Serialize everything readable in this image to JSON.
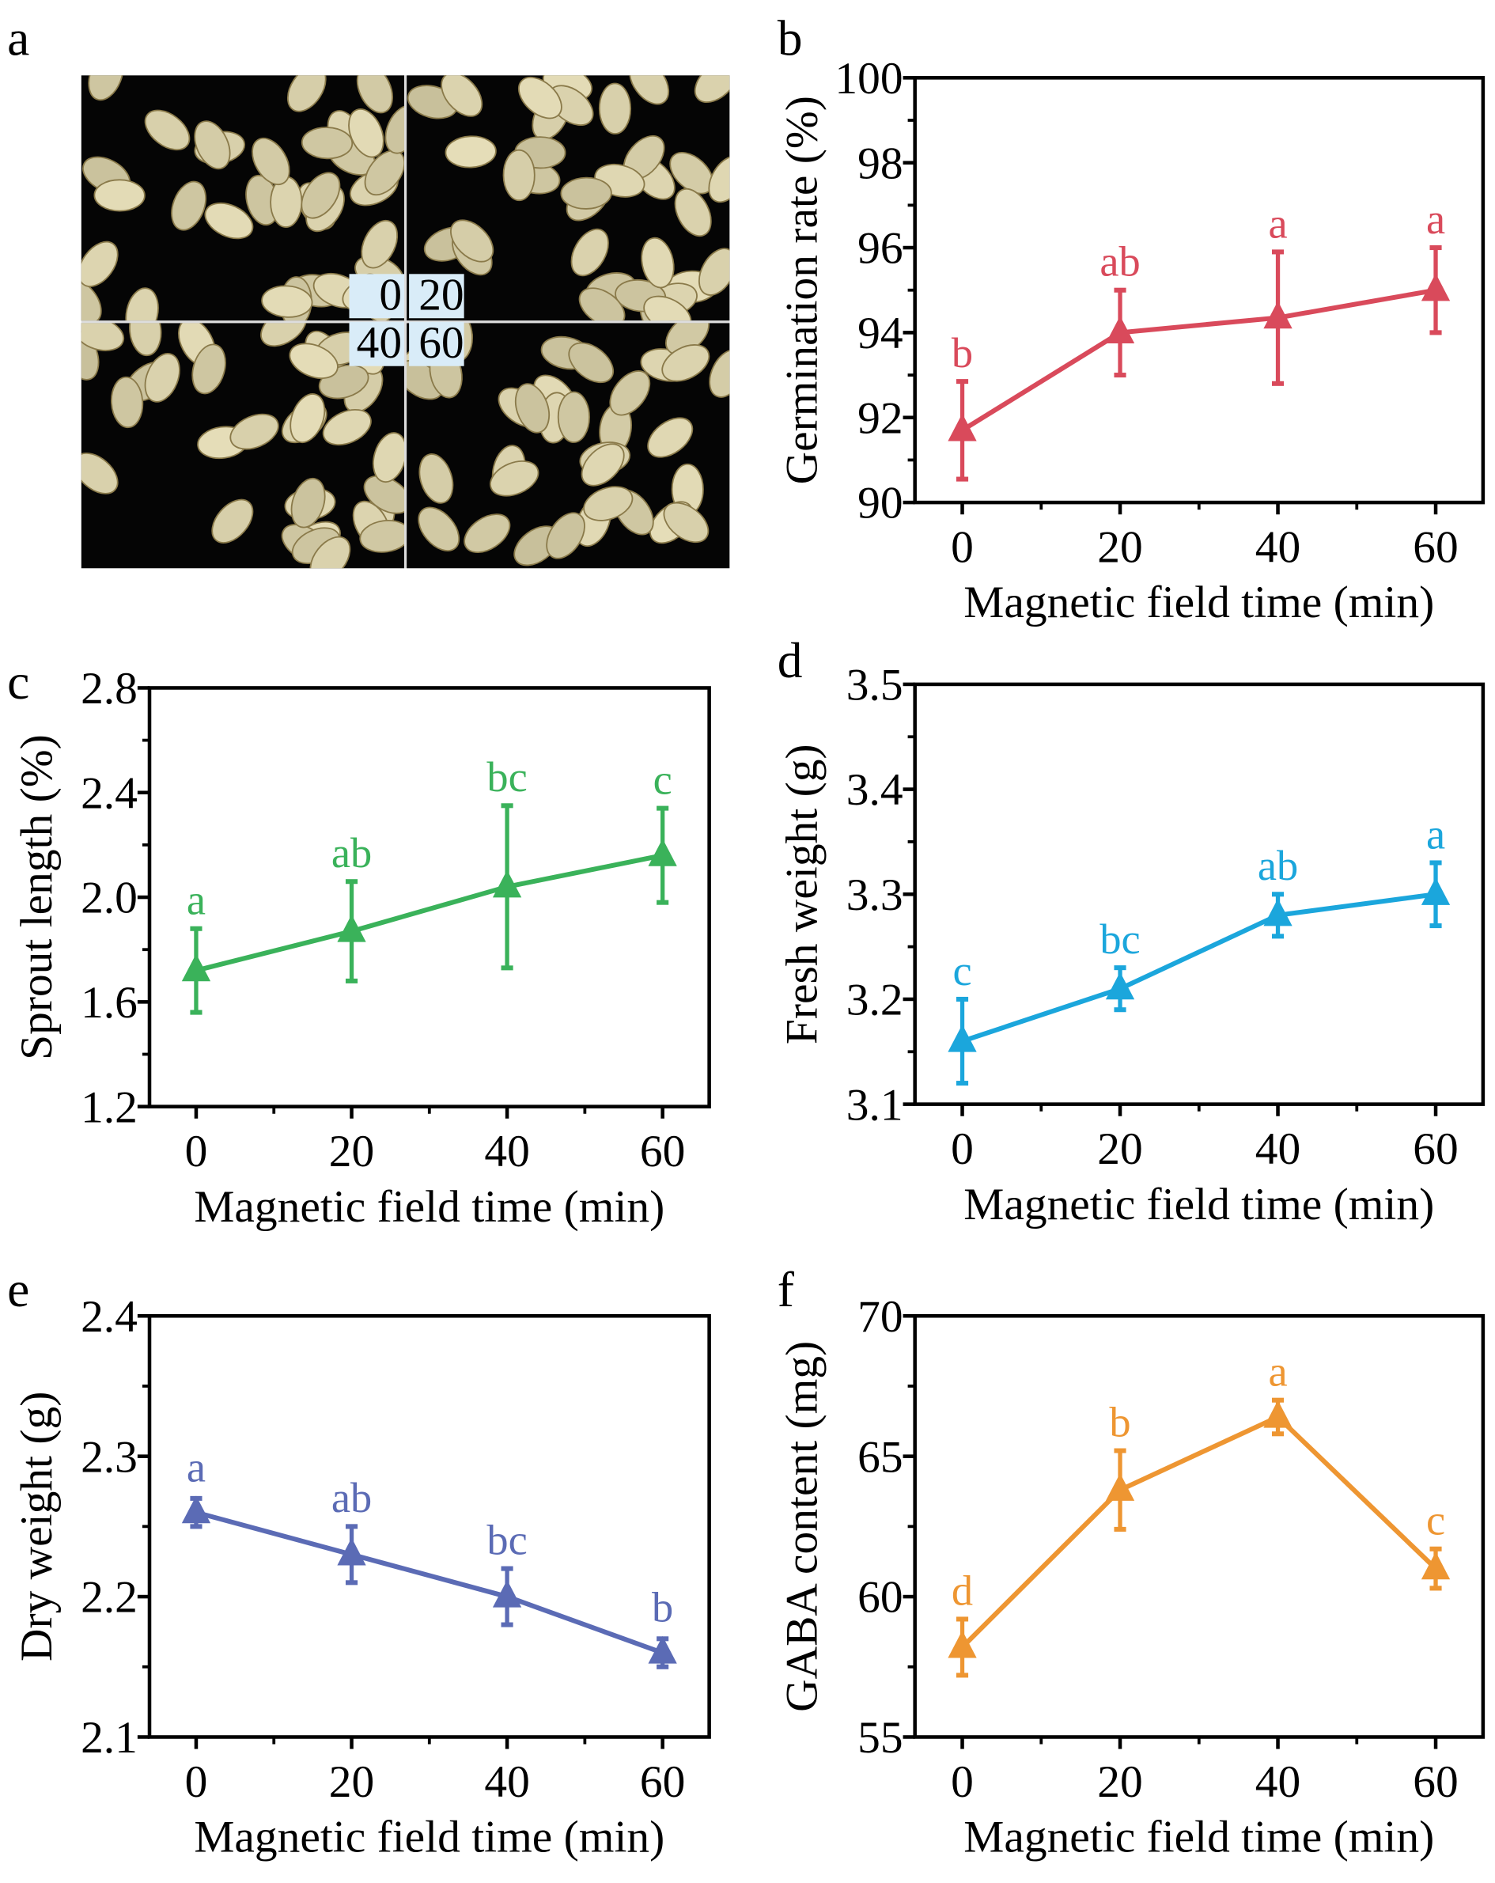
{
  "figure": {
    "panel_letters": [
      "a",
      "b",
      "c",
      "d",
      "e",
      "f"
    ],
    "photo_panel": {
      "labels": [
        "0",
        "20",
        "40",
        "60"
      ],
      "label_bg_color": "#d9ecf8"
    }
  },
  "chart_data": [
    {
      "panel": "b",
      "type": "line",
      "color": "#d94a5b",
      "marker": "triangle",
      "xlabel": "Magnetic field time (min)",
      "ylabel": "Germination rate (%)",
      "x": [
        0,
        20,
        40,
        60
      ],
      "xticks": [
        "0",
        "20",
        "40",
        "60"
      ],
      "xlim": [
        -6,
        66
      ],
      "ylim": [
        90,
        100
      ],
      "yticks": [
        "90",
        "92",
        "94",
        "96",
        "98",
        "100"
      ],
      "values": [
        91.7,
        94.0,
        94.35,
        95.0
      ],
      "errors": [
        1.15,
        1.0,
        1.55,
        1.0
      ],
      "significance": [
        "b",
        "ab",
        "a",
        "a"
      ],
      "grid": false
    },
    {
      "panel": "c",
      "type": "line",
      "color": "#3ab25a",
      "marker": "triangle",
      "xlabel": "Magnetic field time (min)",
      "ylabel": "Sprout length (%)",
      "x": [
        0,
        20,
        40,
        60
      ],
      "xticks": [
        "0",
        "20",
        "40",
        "60"
      ],
      "xlim": [
        -6,
        66
      ],
      "ylim": [
        1.2,
        2.8
      ],
      "yticks": [
        "1.2",
        "1.6",
        "2.0",
        "2.4",
        "2.8"
      ],
      "values": [
        1.72,
        1.87,
        2.04,
        2.16
      ],
      "errors": [
        0.16,
        0.19,
        0.31,
        0.18
      ],
      "significance": [
        "a",
        "ab",
        "bc",
        "c"
      ],
      "grid": false
    },
    {
      "panel": "d",
      "type": "line",
      "color": "#1ba6dc",
      "marker": "triangle",
      "xlabel": "Magnetic field time (min)",
      "ylabel": "Fresh weight (g)",
      "x": [
        0,
        20,
        40,
        60
      ],
      "xticks": [
        "0",
        "20",
        "40",
        "60"
      ],
      "xlim": [
        -6,
        66
      ],
      "ylim": [
        3.1,
        3.5
      ],
      "yticks": [
        "3.1",
        "3.2",
        "3.3",
        "3.4",
        "3.5"
      ],
      "values": [
        3.16,
        3.21,
        3.28,
        3.3
      ],
      "errors": [
        0.04,
        0.02,
        0.02,
        0.03
      ],
      "significance": [
        "c",
        "bc",
        "ab",
        "a"
      ],
      "grid": false
    },
    {
      "panel": "e",
      "type": "line",
      "color": "#5b6bb5",
      "marker": "triangle",
      "xlabel": "Magnetic field time (min)",
      "ylabel": "Dry weight (g)",
      "x": [
        0,
        20,
        40,
        60
      ],
      "xticks": [
        "0",
        "20",
        "40",
        "60"
      ],
      "xlim": [
        -6,
        66
      ],
      "ylim": [
        2.1,
        2.4
      ],
      "yticks": [
        "2.1",
        "2.2",
        "2.3",
        "2.4"
      ],
      "values": [
        2.26,
        2.23,
        2.2,
        2.16
      ],
      "errors": [
        0.01,
        0.02,
        0.02,
        0.01
      ],
      "significance": [
        "a",
        "ab",
        "bc",
        "b"
      ],
      "grid": false
    },
    {
      "panel": "f",
      "type": "line",
      "color": "#ee9632",
      "marker": "triangle",
      "xlabel": "Magnetic field time (min)",
      "ylabel": "GABA content (mg)",
      "x": [
        0,
        20,
        40,
        60
      ],
      "xticks": [
        "0",
        "20",
        "40",
        "60"
      ],
      "xlim": [
        -6,
        66
      ],
      "ylim": [
        55,
        70
      ],
      "yticks": [
        "55",
        "60",
        "65",
        "70"
      ],
      "values": [
        58.2,
        63.8,
        66.4,
        61.0
      ],
      "errors": [
        1.0,
        1.4,
        0.6,
        0.7
      ],
      "significance": [
        "d",
        "b",
        "a",
        "c"
      ],
      "grid": false
    }
  ]
}
